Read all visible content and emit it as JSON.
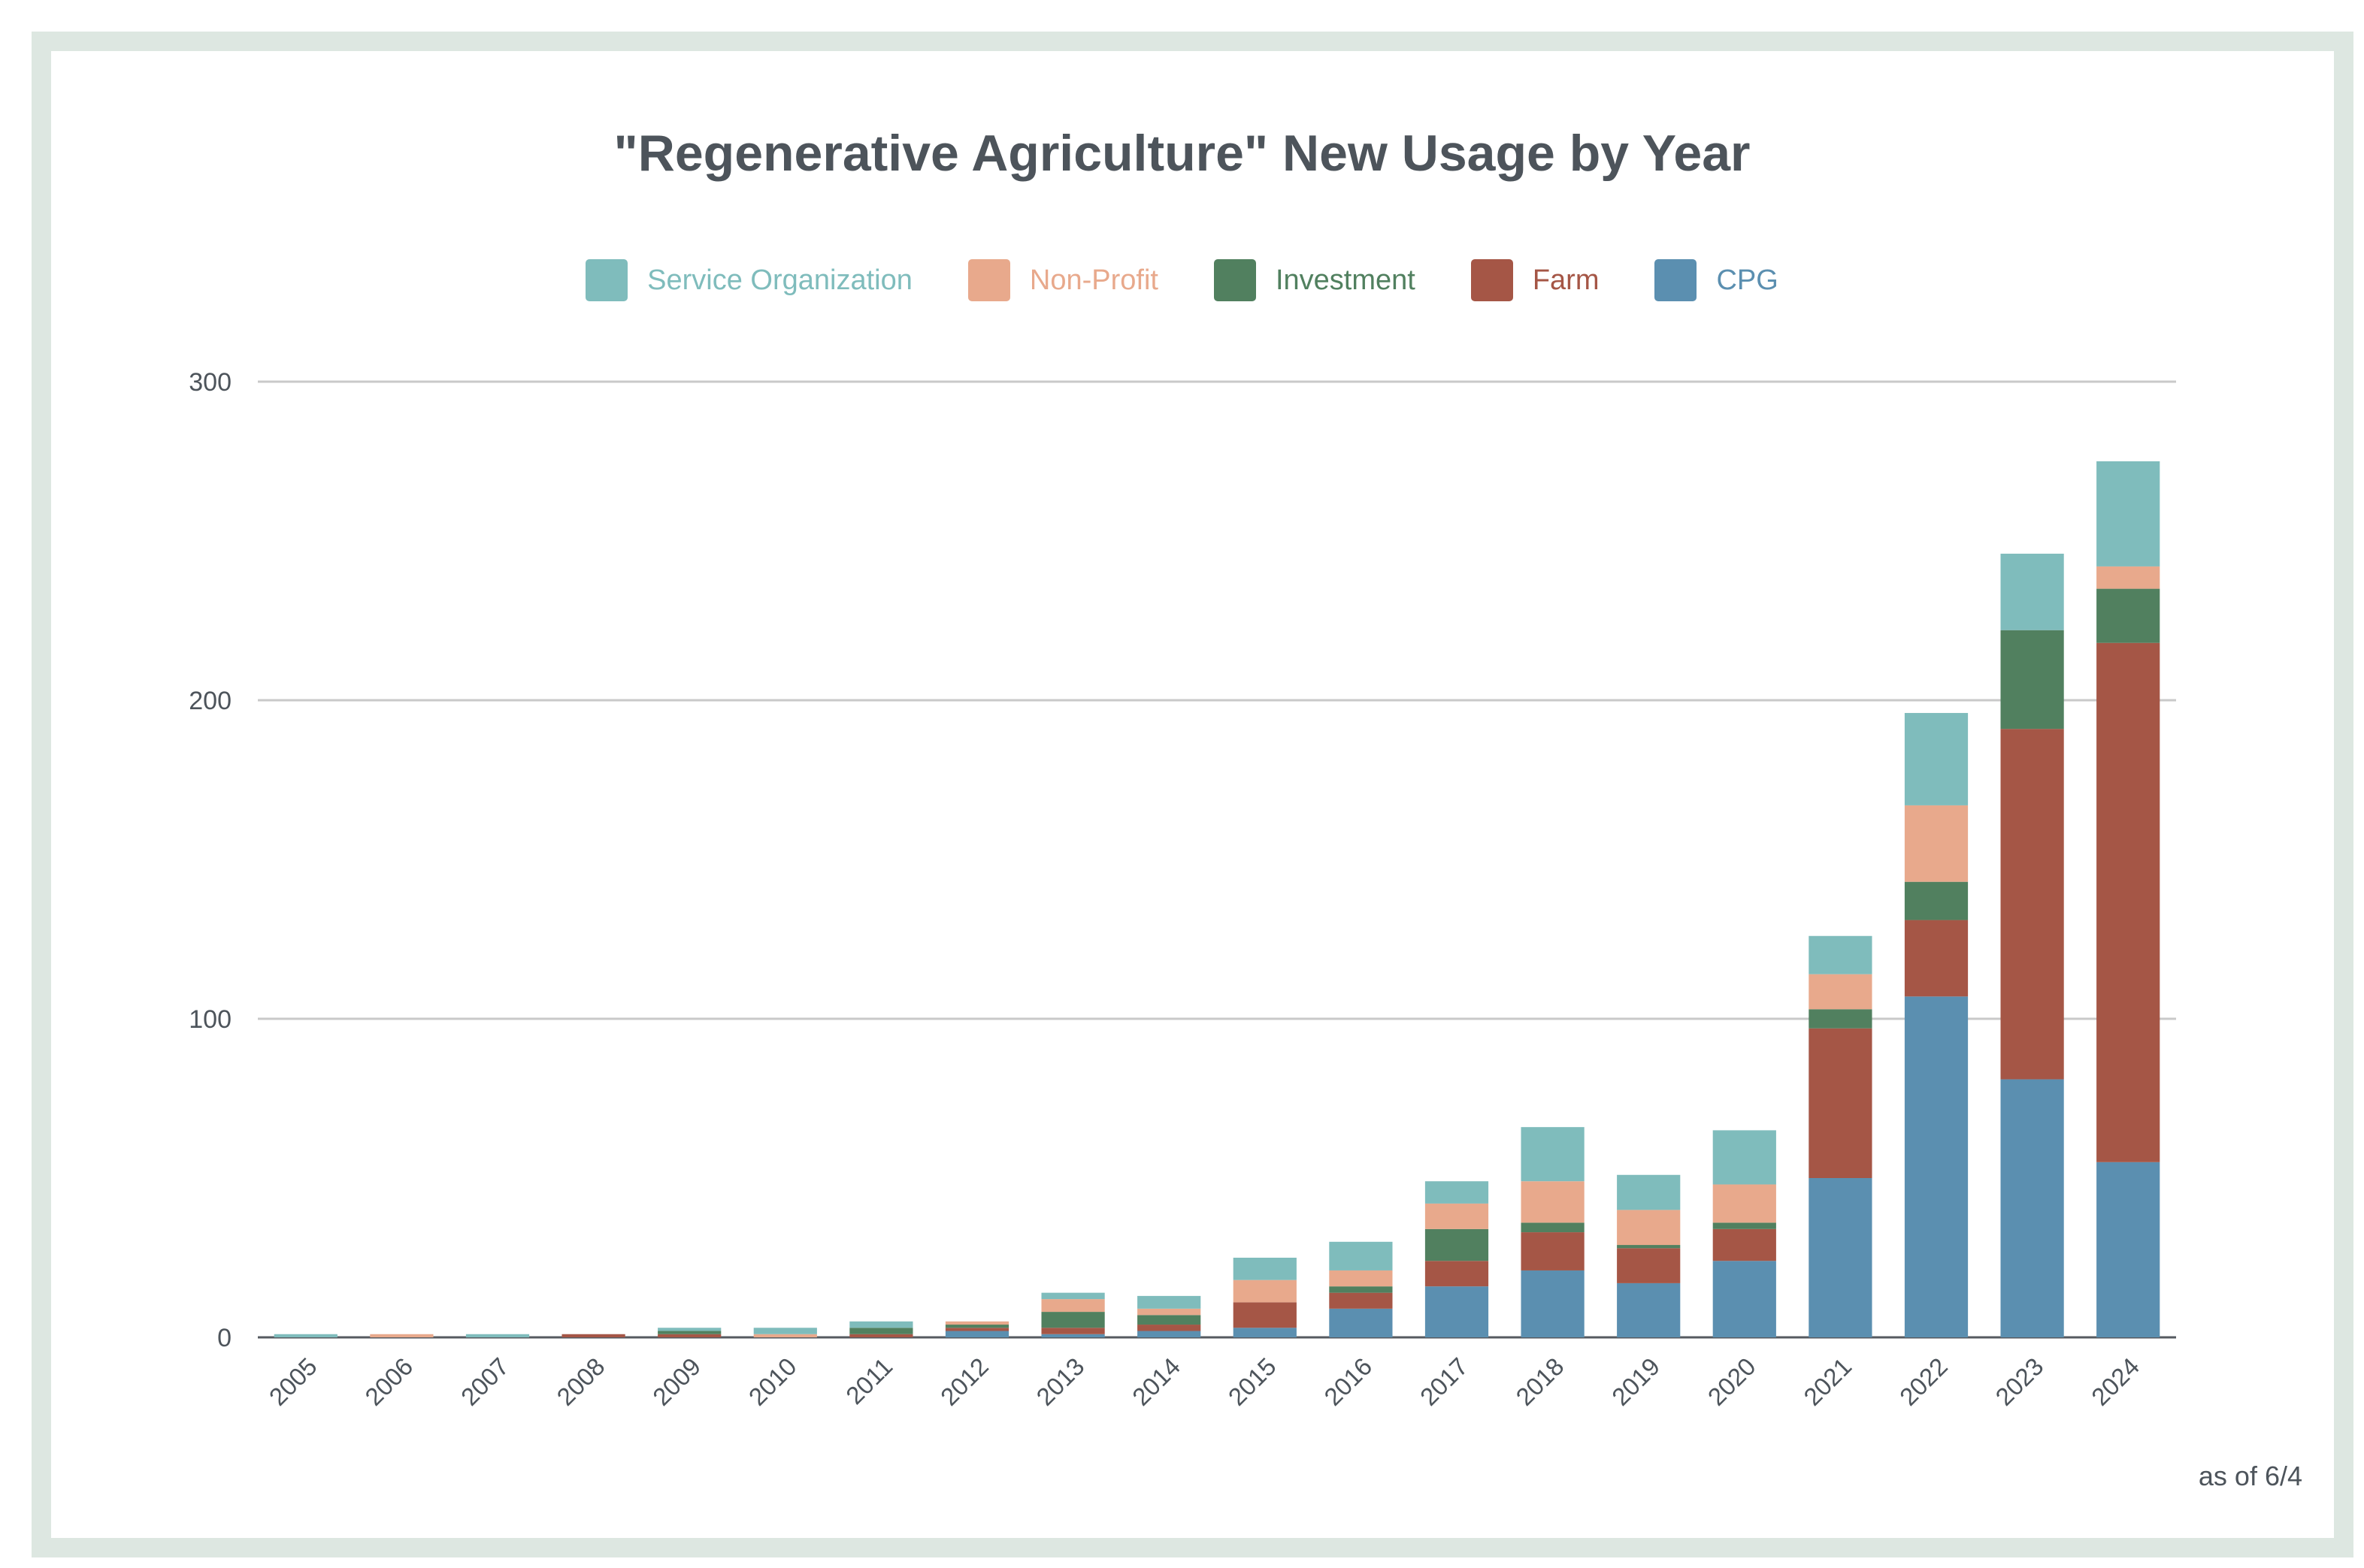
{
  "title": "\"Regenerative Agriculture\" New Usage by Year",
  "footnote": "as of 6/4",
  "chart_data": {
    "type": "bar",
    "stacked": true,
    "title": "\"Regenerative Agriculture\" New Usage by Year",
    "xlabel": "",
    "ylabel": "",
    "ylim": [
      0,
      300
    ],
    "yticks": [
      0,
      100,
      200,
      300
    ],
    "grid": true,
    "legend_position": "top",
    "categories": [
      "2005",
      "2006",
      "2007",
      "2008",
      "2009",
      "2010",
      "2011",
      "2012",
      "2013",
      "2014",
      "2015",
      "2016",
      "2017",
      "2018",
      "2019",
      "2020",
      "2021",
      "2022",
      "2023",
      "2024"
    ],
    "series": [
      {
        "name": "CPG",
        "color": "#5b8fb0",
        "values": [
          0,
          0,
          0,
          0,
          0,
          0,
          0,
          2,
          1,
          2,
          3,
          9,
          16,
          21,
          17,
          24,
          50,
          107,
          81,
          55
        ]
      },
      {
        "name": "Farm",
        "color": "#a55646",
        "values": [
          0,
          0,
          0,
          1,
          1,
          0,
          1,
          1,
          2,
          2,
          8,
          5,
          8,
          12,
          11,
          10,
          47,
          24,
          110,
          163
        ]
      },
      {
        "name": "Investment",
        "color": "#51805f",
        "values": [
          0,
          0,
          0,
          0,
          1,
          0,
          2,
          1,
          5,
          3,
          0,
          2,
          10,
          3,
          1,
          2,
          6,
          12,
          31,
          17
        ]
      },
      {
        "name": "Non-Profit",
        "color": "#e8a98c",
        "values": [
          0,
          1,
          0,
          0,
          0,
          1,
          0,
          1,
          4,
          2,
          7,
          5,
          8,
          13,
          11,
          12,
          11,
          24,
          0,
          7
        ]
      },
      {
        "name": "Service Organization",
        "color": "#7fbcbc",
        "values": [
          1,
          0,
          1,
          0,
          1,
          2,
          2,
          0,
          2,
          4,
          7,
          9,
          7,
          17,
          11,
          17,
          12,
          29,
          24,
          33
        ]
      }
    ]
  },
  "legend": [
    {
      "label": "Service Organization",
      "color": "#7fbcbc"
    },
    {
      "label": "Non-Profit",
      "color": "#e8a98c"
    },
    {
      "label": "Investment",
      "color": "#51805f"
    },
    {
      "label": "Farm",
      "color": "#a55646"
    },
    {
      "label": "CPG",
      "color": "#5b8fb0"
    }
  ]
}
